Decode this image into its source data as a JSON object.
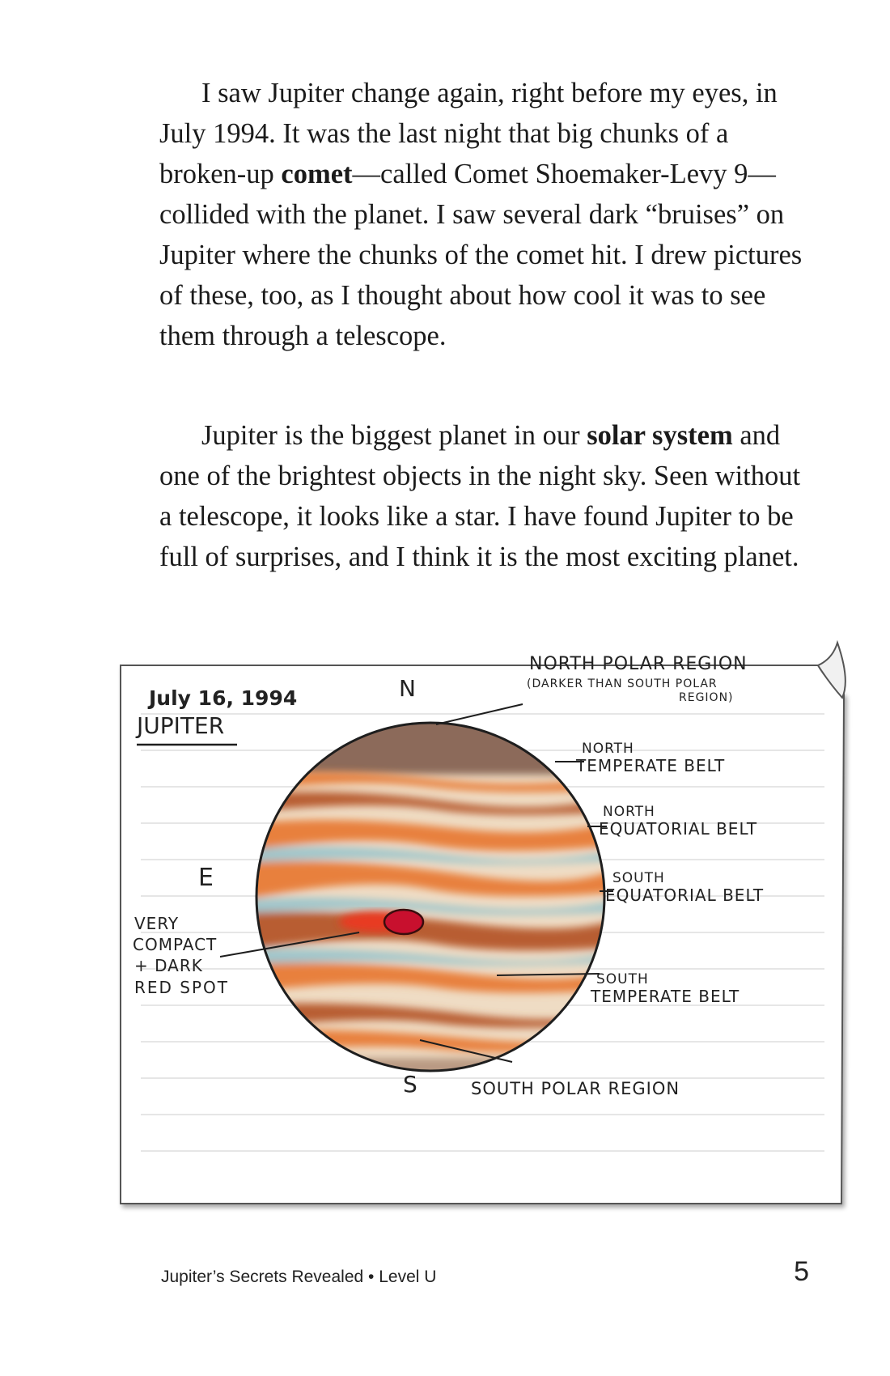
{
  "paragraph1": {
    "part1": "I saw Jupiter change again, right before my eyes, in July 1994. It was the last night that big chunks of a broken-up ",
    "bold1": "comet",
    "part2": "—called Comet Shoemaker-Levy 9—collided with the planet. I saw several dark “bruises” on Jupiter where the chunks of the comet hit. I drew pictures of these, too, as I thought about how cool it was to see them through a telescope."
  },
  "paragraph2": {
    "part1": "Jupiter is the biggest planet in our ",
    "bold1": "solar system",
    "part2": " and one of the brightest objects in the night sky. Seen without a telescope, it looks like a star. I have found Jupiter to be full of surprises, and I think it is the most exciting planet."
  },
  "sketch": {
    "date": "July 16, 1994",
    "title": "JUPITER",
    "directions": {
      "north": "N",
      "east": "E",
      "south": "S"
    },
    "labels": {
      "north_polar": "NORTH POLAR REGION",
      "north_polar_note_1": "(DARKER THAN SOUTH POLAR",
      "north_polar_note_2": "REGION)",
      "ntb_1": "NORTH",
      "ntb_2": "TEMPERATE BELT",
      "neb_1": "NORTH",
      "neb_2": "EQUATORIAL BELT",
      "seb_1": "SOUTH",
      "seb_2": "EQUATORIAL BELT",
      "stb_1": "SOUTH",
      "stb_2": "TEMPERATE BELT",
      "south_polar": "SOUTH POLAR REGION",
      "spot_1": "VERY",
      "spot_2": "COMPACT",
      "spot_3": "+ DARK",
      "spot_4": "RED SPOT"
    },
    "colors": {
      "zone": "#efdcc4",
      "belt_orange": "#e8803e",
      "belt_dark": "#b85d33",
      "belt_blue": "#9fc6cc",
      "polar": "#8c6a5a",
      "red_spot": "#c8102e",
      "red_glow": "#e83a20"
    }
  },
  "footer": {
    "book_title": "Jupiter’s Secrets Revealed • Level U",
    "page_number": "5"
  }
}
